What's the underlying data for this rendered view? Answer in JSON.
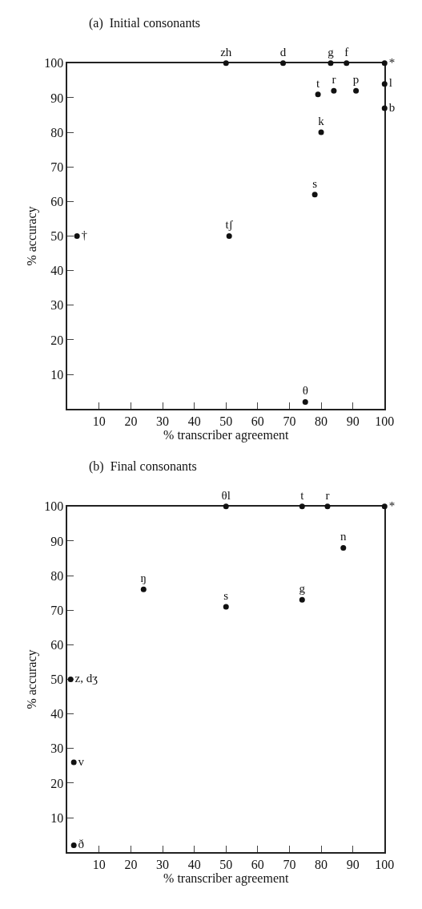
{
  "chart_data": [
    {
      "type": "scatter",
      "title": "(a)  Initial consonants",
      "xlabel": "% transcriber agreement",
      "ylabel": "% accuracy",
      "marker": "circle",
      "x": [
        50,
        68,
        83,
        88,
        100,
        100,
        100,
        79,
        84,
        91,
        80,
        78,
        3,
        51,
        75
      ],
      "values": [
        100,
        100,
        100,
        100,
        100,
        94,
        87,
        91,
        92,
        92,
        80,
        62,
        50,
        50,
        2
      ],
      "value_labels": [
        "zh",
        "d",
        "g",
        "f",
        "*",
        "l",
        "b",
        "t",
        "r",
        "p",
        "k",
        "s",
        "†",
        "tʃ",
        "θ"
      ],
      "xlim": [
        0,
        100
      ],
      "ylim": [
        0,
        100
      ],
      "xticks": [
        10,
        20,
        30,
        40,
        50,
        60,
        70,
        80,
        90,
        100
      ],
      "yticks": [
        10,
        20,
        30,
        40,
        50,
        60,
        70,
        80,
        90,
        100
      ]
    },
    {
      "type": "scatter",
      "title": "(b)  Final consonants",
      "xlabel": "% transcriber agreement",
      "ylabel": "% accuracy",
      "marker": "circle",
      "x": [
        50,
        74,
        82,
        100,
        87,
        24,
        50,
        74,
        1,
        2,
        2
      ],
      "values": [
        100,
        100,
        100,
        100,
        88,
        76,
        71,
        73,
        50,
        26,
        2
      ],
      "value_labels": [
        "θl",
        "t",
        "r",
        "*",
        "n",
        "ŋ",
        "s",
        "g",
        "z, dʒ",
        "v",
        "ð"
      ],
      "xlim": [
        0,
        100
      ],
      "ylim": [
        0,
        100
      ],
      "xticks": [
        10,
        20,
        30,
        40,
        50,
        60,
        70,
        80,
        90,
        100
      ],
      "yticks": [
        10,
        20,
        30,
        40,
        50,
        60,
        70,
        80,
        90,
        100
      ]
    }
  ]
}
